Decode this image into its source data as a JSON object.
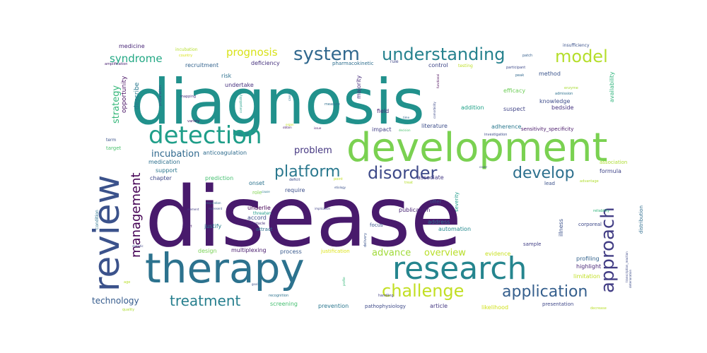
{
  "words": [
    {
      "text": "disease",
      "color": "#481a6c"
    },
    {
      "text": "diagnosis",
      "color": "#21918c"
    },
    {
      "text": "development",
      "color": "#7ad151"
    },
    {
      "text": "therapy",
      "color": "#2c728e"
    },
    {
      "text": "research",
      "color": "#25858e"
    },
    {
      "text": "review",
      "color": "#3b528b"
    },
    {
      "text": "detection",
      "color": "#1f9e89"
    },
    {
      "text": "system",
      "color": "#31688e"
    },
    {
      "text": "understanding",
      "color": "#26828e"
    },
    {
      "text": "model",
      "color": "#b5de2b"
    },
    {
      "text": "disorder",
      "color": "#3e4a89"
    },
    {
      "text": "platform",
      "color": "#2a788e"
    },
    {
      "text": "develop",
      "color": "#2d708e"
    },
    {
      "text": "approach",
      "color": "#433e85"
    },
    {
      "text": "challenge",
      "color": "#c2df23"
    },
    {
      "text": "application",
      "color": "#355f8d"
    },
    {
      "text": "management",
      "color": "#440154"
    },
    {
      "text": "treatment",
      "color": "#277f8e"
    },
    {
      "text": "prognosis",
      "color": "#d8e219"
    },
    {
      "text": "syndrome",
      "color": "#22a884"
    },
    {
      "text": "incubation",
      "color": "#30698e"
    },
    {
      "text": "problem",
      "color": "#453781"
    },
    {
      "text": "advance",
      "color": "#a0da39"
    },
    {
      "text": "overview",
      "color": "#b8de29"
    },
    {
      "text": "strategy",
      "color": "#35b779"
    },
    {
      "text": "technology",
      "color": "#365c8d"
    },
    {
      "text": "opportunity",
      "color": "#471063"
    },
    {
      "text": "describe",
      "color": "#29798e"
    },
    {
      "text": "medicine",
      "color": "#482677"
    },
    {
      "text": "recruitment",
      "color": "#33638d"
    },
    {
      "text": "deficiency",
      "color": "#46327e"
    },
    {
      "text": "pharmacokinetic",
      "color": "#2e6e8e"
    },
    {
      "text": "control",
      "color": "#3f4788"
    },
    {
      "text": "risk",
      "color": "#2d708e"
    },
    {
      "text": "undertake",
      "color": "#46307e"
    },
    {
      "text": "majority",
      "color": "#472d7b"
    },
    {
      "text": "method",
      "color": "#3a548c"
    },
    {
      "text": "efficacy",
      "color": "#6ece58"
    },
    {
      "text": "knowledge",
      "color": "#3e4c8a"
    },
    {
      "text": "bedside",
      "color": "#463480"
    },
    {
      "text": "availability",
      "color": "#2fb47c"
    },
    {
      "text": "suspect",
      "color": "#414487"
    },
    {
      "text": "addition",
      "color": "#1fa187"
    },
    {
      "text": "field",
      "color": "#482475"
    },
    {
      "text": "literature",
      "color": "#3d4e8a"
    },
    {
      "text": "impact",
      "color": "#423f85"
    },
    {
      "text": "adherence",
      "color": "#2a788e"
    },
    {
      "text": "sensitivity_specificity",
      "color": "#481769"
    },
    {
      "text": "anticoagulation",
      "color": "#2f6c8e"
    },
    {
      "text": "association",
      "color": "#addc30"
    },
    {
      "text": "require",
      "color": "#3c4f8a"
    },
    {
      "text": "formula",
      "color": "#404588"
    },
    {
      "text": "lead",
      "color": "#3b518b"
    },
    {
      "text": "prediction",
      "color": "#44bf70"
    },
    {
      "text": "onset",
      "color": "#2c738e"
    },
    {
      "text": "medication",
      "color": "#2d708e"
    },
    {
      "text": "support",
      "color": "#2a768e"
    },
    {
      "text": "chapter",
      "color": "#3f4889"
    },
    {
      "text": "associate",
      "color": "#443a83"
    },
    {
      "text": "role",
      "color": "#7fd34e"
    },
    {
      "text": "underlie",
      "color": "#440154"
    },
    {
      "text": "accord",
      "color": "#3d4d8a"
    },
    {
      "text": "justify",
      "color": "#287c8e"
    },
    {
      "text": "address",
      "color": "#2e6f8e"
    },
    {
      "text": "automation",
      "color": "#23898e"
    },
    {
      "text": "publication",
      "color": "#482374"
    },
    {
      "text": "severity",
      "color": "#1e9b8a"
    },
    {
      "text": "offer",
      "color": "#3b528b"
    },
    {
      "text": "illness",
      "color": "#3b518b"
    },
    {
      "text": "distribution",
      "color": "#2e6d8e"
    },
    {
      "text": "focus",
      "color": "#3a548c"
    },
    {
      "text": "attract",
      "color": "#2d708e"
    },
    {
      "text": "corporeal",
      "color": "#3e4989"
    },
    {
      "text": "design",
      "color": "#77d153"
    },
    {
      "text": "multiplexing",
      "color": "#481b6d"
    },
    {
      "text": "process",
      "color": "#38598c"
    },
    {
      "text": "justification",
      "color": "#dde318"
    },
    {
      "text": "evidence",
      "color": "#c8e020"
    },
    {
      "text": "sample",
      "color": "#424086"
    },
    {
      "text": "profiling",
      "color": "#33638d"
    },
    {
      "text": "highlight",
      "color": "#482677"
    },
    {
      "text": "limitation",
      "color": "#c0df25"
    },
    {
      "text": "screening",
      "color": "#44bf70"
    },
    {
      "text": "prevention",
      "color": "#2a768e"
    },
    {
      "text": "pathophysiology",
      "color": "#3e4a89"
    },
    {
      "text": "article",
      "color": "#453882"
    },
    {
      "text": "likelihood",
      "color": "#d0e11c"
    },
    {
      "text": "presentation",
      "color": "#3f4889"
    },
    {
      "text": "condition",
      "color": "#2c738e"
    },
    {
      "text": "term",
      "color": "#3b518b"
    },
    {
      "text": "target",
      "color": "#4ac16d"
    },
    {
      "text": "effort",
      "color": "#481f70"
    },
    {
      "text": "obstacle",
      "color": "#472e7c"
    },
    {
      "text": "threaten",
      "color": "#1f9a8a"
    },
    {
      "text": "delivery",
      "color": "#3a548c"
    },
    {
      "text": "handling",
      "color": "#433e85"
    },
    {
      "text": "recognition",
      "color": "#2c728e"
    },
    {
      "text": "quality",
      "color": "#addc30"
    },
    {
      "text": "amplification",
      "color": "#482071"
    },
    {
      "text": "incubation",
      "color": "#b5de2b"
    },
    {
      "text": "country",
      "color": "#dae319"
    },
    {
      "text": "participant",
      "color": "#3e4a89"
    },
    {
      "text": "patch",
      "color": "#355f8d"
    },
    {
      "text": "insufficiency",
      "color": "#3b528b"
    },
    {
      "text": "testing",
      "color": "#bddf26"
    },
    {
      "text": "rule",
      "color": "#3f4788"
    },
    {
      "text": "peak",
      "color": "#31688e"
    },
    {
      "text": "admission",
      "color": "#2d708e"
    },
    {
      "text": "enzyme",
      "color": "#a8db34"
    },
    {
      "text": "advantage",
      "color": "#b0dd2f"
    },
    {
      "text": "reliability",
      "color": "#31b57b"
    },
    {
      "text": "statistic",
      "color": "#3f4889"
    },
    {
      "text": "goal",
      "color": "#3b528b"
    },
    {
      "text": "profile",
      "color": "#35b779"
    },
    {
      "text": "mapping",
      "color": "#46327e"
    },
    {
      "text": "variety",
      "color": "#481a6c"
    },
    {
      "text": "measure",
      "color": "#2e6e8e"
    },
    {
      "text": "investigation",
      "color": "#3e4c8a"
    },
    {
      "text": "decrease",
      "color": "#b8de29"
    },
    {
      "text": "deterioration",
      "color": "#3d4e8a"
    },
    {
      "text": "element",
      "color": "#433e85"
    },
    {
      "text": "respiration",
      "color": "#2e6f8e"
    },
    {
      "text": "represent",
      "color": "#3a548c"
    },
    {
      "text": "implication",
      "color": "#404588"
    },
    {
      "text": "etiology",
      "color": "#3b518b"
    },
    {
      "text": "cause",
      "color": "#29798e"
    },
    {
      "text": "deficit",
      "color": "#3e4a89"
    },
    {
      "text": "point",
      "color": "#c2df23"
    },
    {
      "text": "treat",
      "color": "#b5de2b"
    },
    {
      "text": "cover",
      "color": "#3e4989"
    },
    {
      "text": "issue",
      "color": "#481769"
    },
    {
      "text": "decision",
      "color": "#4ac16d"
    },
    {
      "text": "time",
      "color": "#31688e"
    },
    {
      "text": "compatibility",
      "color": "#1f9e89"
    },
    {
      "text": "preparation",
      "color": "#3b528b"
    },
    {
      "text": "functional",
      "color": "#440154"
    },
    {
      "text": "comorbidity",
      "color": "#3e4a89"
    },
    {
      "text": "cancer",
      "color": "#2c728e"
    },
    {
      "text": "obtain",
      "color": "#481a6c"
    },
    {
      "text": "organ",
      "color": "#c2df23"
    },
    {
      "text": "transcription_reaction",
      "color": "#3e4a89"
    },
    {
      "text": "age",
      "color": "#b8de29"
    }
  ]
}
